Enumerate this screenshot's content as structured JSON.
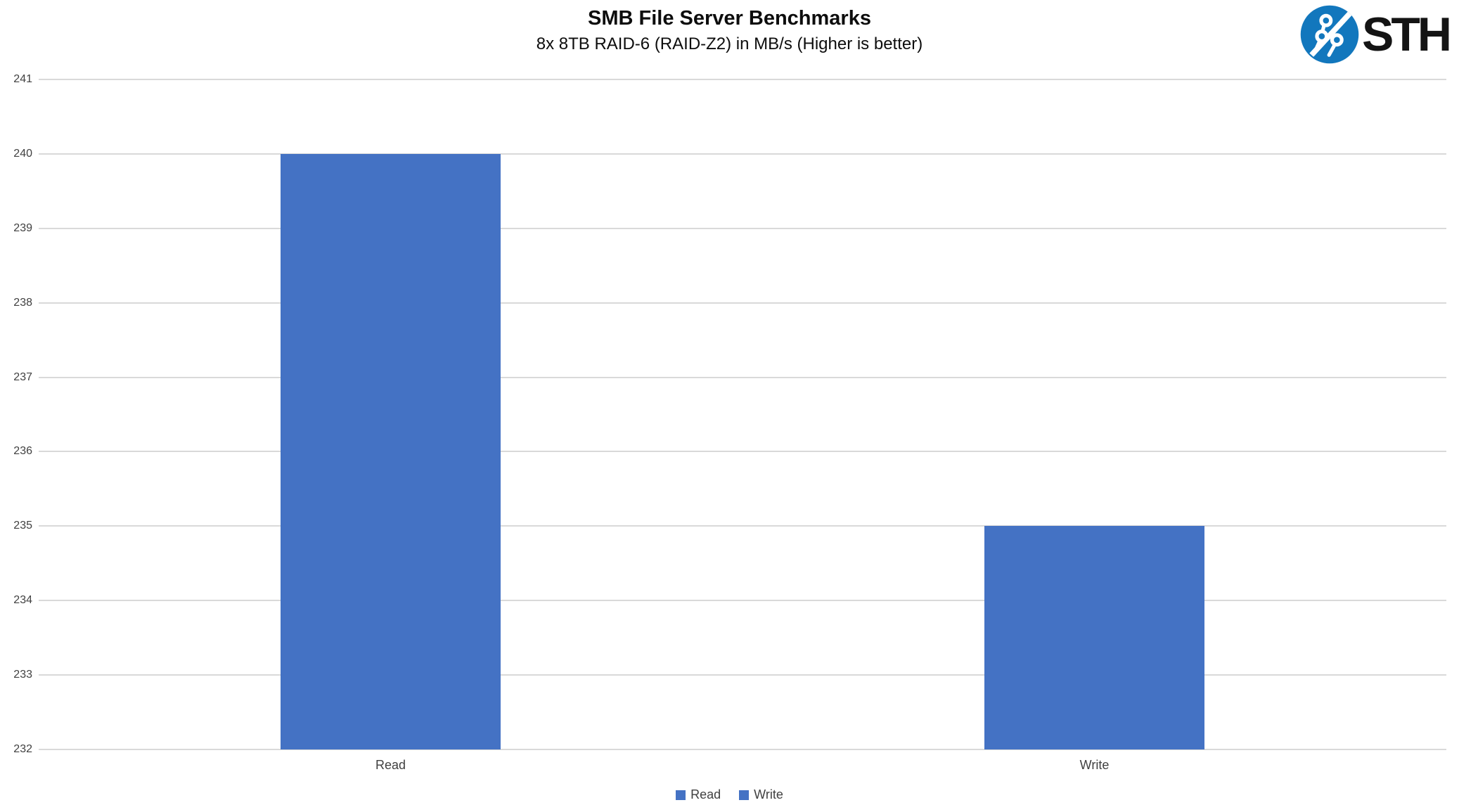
{
  "logo": {
    "text": "STH",
    "icon": "circuit-board-icon",
    "circle_color": "#1277BD",
    "text_color": "#141414"
  },
  "chart_data": {
    "type": "bar",
    "title": "SMB File Server Benchmarks",
    "subtitle": "8x 8TB RAID-6 (RAID-Z2) in MB/s (Higher is better)",
    "categories": [
      "Read",
      "Write"
    ],
    "values": [
      240,
      235
    ],
    "units": "MB/s",
    "xlabel": "",
    "ylabel": "",
    "ylim": [
      232,
      241
    ],
    "yticks": [
      241,
      240,
      239,
      238,
      237,
      236,
      235,
      234,
      233,
      232
    ],
    "grid": true,
    "gridline_color": "#D9D9D9",
    "bar_color": "#4472C4",
    "axis_text_color": "#404040",
    "legend": [
      "Read",
      "Write"
    ],
    "legend_position": "bottom"
  }
}
